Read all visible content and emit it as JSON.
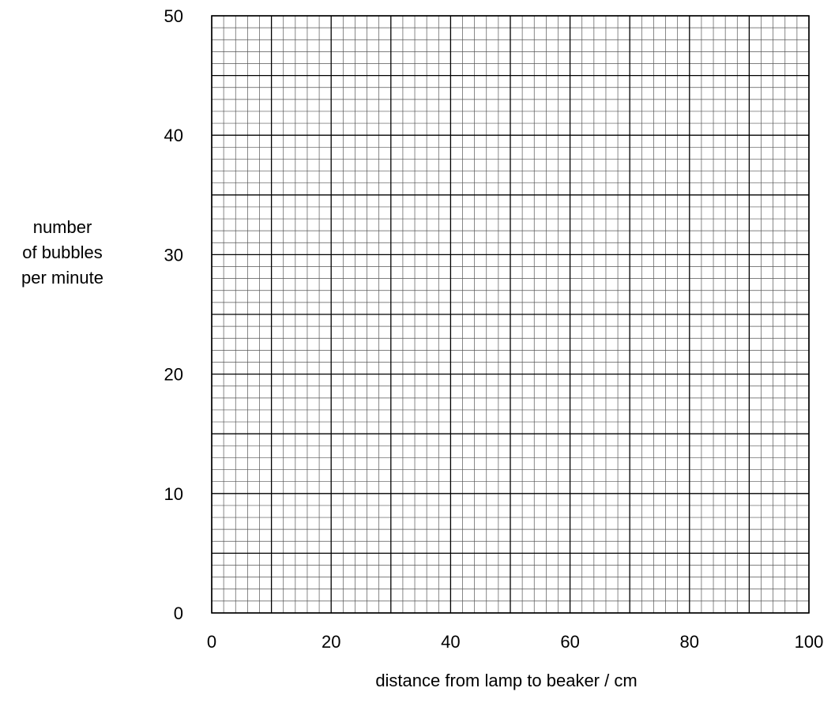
{
  "chart_data": {
    "type": "scatter",
    "title": "",
    "xlabel": "distance from lamp to beaker / cm",
    "ylabel": [
      "number",
      "of bubbles",
      "per minute"
    ],
    "xlim": [
      0,
      100
    ],
    "ylim": [
      0,
      50
    ],
    "x_ticks": [
      0,
      20,
      40,
      60,
      80,
      100
    ],
    "y_ticks": [
      0,
      10,
      20,
      30,
      40,
      50
    ],
    "x_tick_labels": [
      "0",
      "20",
      "40",
      "60",
      "80",
      "100"
    ],
    "y_tick_labels": [
      "0",
      "10",
      "20",
      "30",
      "40",
      "50"
    ],
    "grid": true,
    "grid_minor_step_x": 2,
    "grid_minor_step_y": 1,
    "grid_major_step_x": 10,
    "grid_major_step_y": 5,
    "series": [],
    "colors": {
      "grid_minor": "#555555",
      "grid_major": "#000000",
      "text": "#000000",
      "background": "#ffffff"
    }
  }
}
